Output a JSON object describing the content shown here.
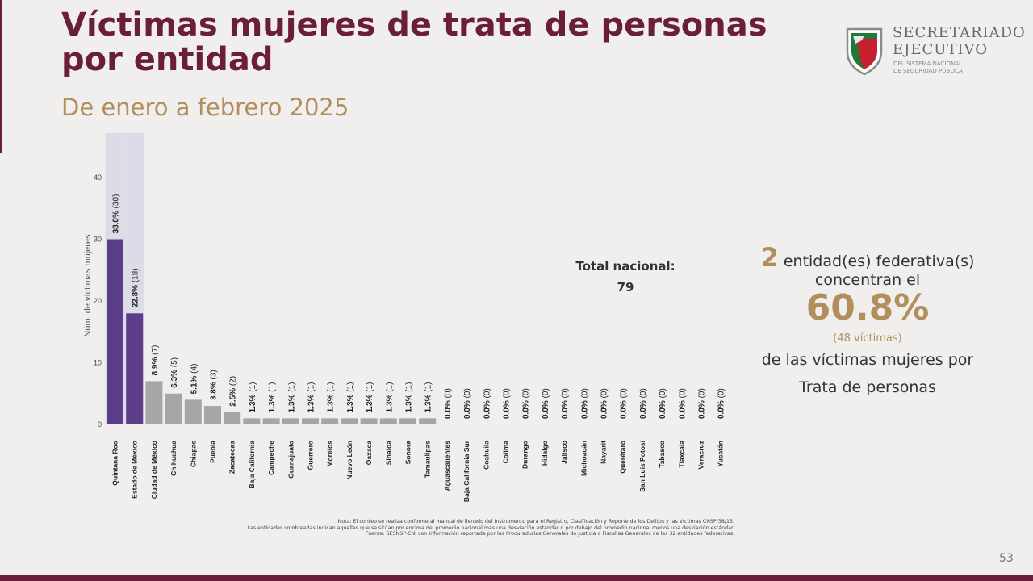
{
  "title": "Víctimas mujeres de trata de personas por entidad",
  "subtitle": "De enero a febrero 2025",
  "logo": {
    "line1": "SECRETARIADO",
    "line2": "EJECUTIVO",
    "line3": "DEL SISTEMA NACIONAL",
    "line4": "DE SEGURIDAD PÚBLICA"
  },
  "total": {
    "label": "Total nacional:",
    "value": "79"
  },
  "summary": {
    "count": "2",
    "line1": "entidad(es) federativa(s)",
    "line2": "concentran el",
    "percent": "60.8%",
    "victims": "(48 víctimas)",
    "line3": "de las víctimas mujeres por",
    "line4": "Trata de personas"
  },
  "notes": [
    "Nota: El conteo se realiza conforme al manual de llenado del Instrumento para el Registro, Clasificación y Reporte de los Delitos y las Víctimas CNSP/38/15.",
    "Las entidades sombreadas indican aquellas que se sitúan por encima del promedio nacional más una desviación estándar o por debajo del promedio nacional menos una desviación estándar.",
    "Fuente: SESNSP-CNI con información reportada por las Procuradurías Generales de Justicia o Fiscalías Generales de las 32 entidades federativas."
  ],
  "page_number": "53",
  "colors": {
    "highlight": "#5c3d8a",
    "normal": "#a6a6a6",
    "shade": "#dcdce8",
    "brand": "#6b1d3c",
    "gold": "#b38e5d"
  },
  "chart_data": {
    "type": "bar",
    "ylabel": "Núm. de víctimas mujeres",
    "ylim": [
      0,
      45
    ],
    "yticks": [
      0,
      10,
      20,
      30,
      40
    ],
    "highlighted": [
      "Quintana Roo",
      "Estado de México"
    ],
    "categories": [
      "Quintana Roo",
      "Estado de México",
      "Ciudad de México",
      "Chihuahua",
      "Chiapas",
      "Puebla",
      "Zacatecas",
      "Baja California",
      "Campeche",
      "Guanajuato",
      "Guerrero",
      "Morelos",
      "Nuevo León",
      "Oaxaca",
      "Sinaloa",
      "Sonora",
      "Tamaulipas",
      "Aguascalientes",
      "Baja California Sur",
      "Coahuila",
      "Colima",
      "Durango",
      "Hidalgo",
      "Jalisco",
      "Michoacán",
      "Nayarit",
      "Querétaro",
      "San Luis Potosí",
      "Tabasco",
      "Tlaxcala",
      "Veracruz",
      "Yucatán"
    ],
    "values": [
      30,
      18,
      7,
      5,
      4,
      3,
      2,
      1,
      1,
      1,
      1,
      1,
      1,
      1,
      1,
      1,
      1,
      0,
      0,
      0,
      0,
      0,
      0,
      0,
      0,
      0,
      0,
      0,
      0,
      0,
      0,
      0
    ],
    "percents": [
      "38.0%",
      "22.8%",
      "8.9%",
      "6.3%",
      "5.1%",
      "3.8%",
      "2.5%",
      "1.3%",
      "1.3%",
      "1.3%",
      "1.3%",
      "1.3%",
      "1.3%",
      "1.3%",
      "1.3%",
      "1.3%",
      "1.3%",
      "0.0%",
      "0.0%",
      "0.0%",
      "0.0%",
      "0.0%",
      "0.0%",
      "0.0%",
      "0.0%",
      "0.0%",
      "0.0%",
      "0.0%",
      "0.0%",
      "0.0%",
      "0.0%",
      "0.0%"
    ]
  }
}
